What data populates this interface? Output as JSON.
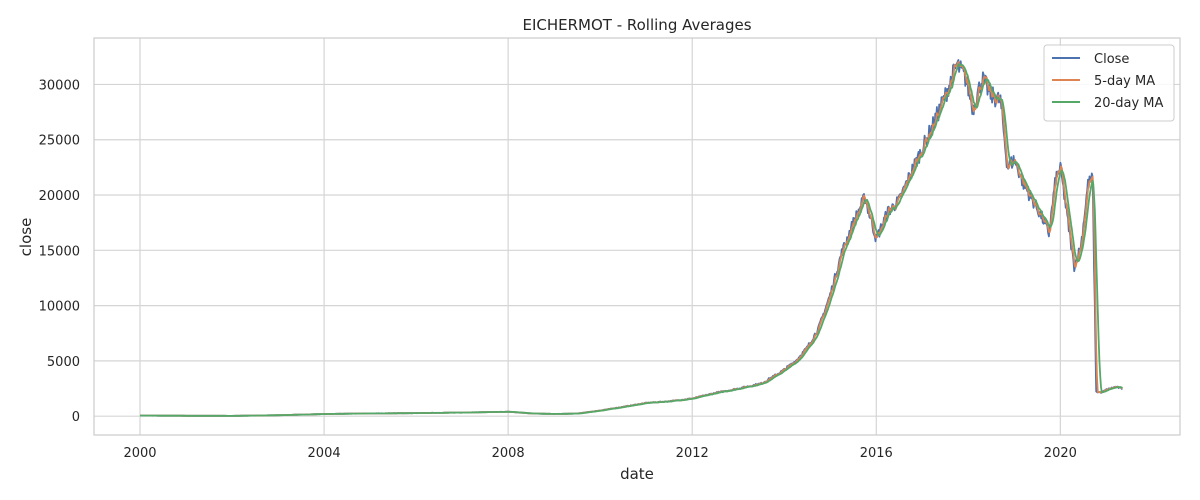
{
  "chart_data": {
    "type": "line",
    "title": "EICHERMOT - Rolling Averages",
    "xlabel": "date",
    "ylabel": "close",
    "xlim": [
      1999.0,
      2022.6
    ],
    "ylim": [
      -1700,
      34200
    ],
    "xticks": [
      2000,
      2004,
      2008,
      2012,
      2016,
      2020
    ],
    "yticks": [
      0,
      5000,
      10000,
      15000,
      20000,
      25000,
      30000
    ],
    "grid": true,
    "legend_position": "top-right",
    "colors": {
      "close": "#4c72b0",
      "ma5": "#dd8452",
      "ma20": "#55a868",
      "grid": "#d5d5d5",
      "frame": "#cccccc"
    },
    "series": [
      {
        "name": "Close",
        "key": "close"
      },
      {
        "name": "5-day MA",
        "key": "ma5"
      },
      {
        "name": "20-day MA",
        "key": "ma20"
      }
    ],
    "points": [
      [
        2000.0,
        55
      ],
      [
        2001.0,
        40
      ],
      [
        2002.0,
        30
      ],
      [
        2003.0,
        90
      ],
      [
        2004.0,
        200
      ],
      [
        2005.0,
        250
      ],
      [
        2006.0,
        280
      ],
      [
        2007.0,
        330
      ],
      [
        2008.0,
        400
      ],
      [
        2008.5,
        250
      ],
      [
        2009.0,
        200
      ],
      [
        2009.5,
        240
      ],
      [
        2010.0,
        520
      ],
      [
        2010.5,
        850
      ],
      [
        2011.0,
        1200
      ],
      [
        2011.5,
        1350
      ],
      [
        2012.0,
        1600
      ],
      [
        2012.5,
        2100
      ],
      [
        2013.0,
        2500
      ],
      [
        2013.5,
        2950
      ],
      [
        2013.75,
        3550
      ],
      [
        2014.0,
        4200
      ],
      [
        2014.25,
        5000
      ],
      [
        2014.5,
        6200
      ],
      [
        2014.75,
        8000
      ],
      [
        2015.0,
        11000
      ],
      [
        2015.25,
        14800
      ],
      [
        2015.5,
        17500
      ],
      [
        2015.75,
        19800
      ],
      [
        2016.0,
        16000
      ],
      [
        2016.25,
        18500
      ],
      [
        2016.5,
        19500
      ],
      [
        2016.75,
        22000
      ],
      [
        2017.0,
        24200
      ],
      [
        2017.25,
        26500
      ],
      [
        2017.5,
        29000
      ],
      [
        2017.75,
        31800
      ],
      [
        2017.95,
        30500
      ],
      [
        2018.1,
        27800
      ],
      [
        2018.3,
        30500
      ],
      [
        2018.5,
        29000
      ],
      [
        2018.7,
        28500
      ],
      [
        2018.85,
        22500
      ],
      [
        2019.0,
        23200
      ],
      [
        2019.2,
        21000
      ],
      [
        2019.4,
        19500
      ],
      [
        2019.6,
        18000
      ],
      [
        2019.75,
        16500
      ],
      [
        2019.9,
        21500
      ],
      [
        2020.0,
        22500
      ],
      [
        2020.15,
        18000
      ],
      [
        2020.3,
        13500
      ],
      [
        2020.45,
        15500
      ],
      [
        2020.6,
        21000
      ],
      [
        2020.7,
        21500
      ],
      [
        2020.78,
        2200
      ],
      [
        2020.9,
        2150
      ],
      [
        2021.0,
        2400
      ],
      [
        2021.2,
        2650
      ],
      [
        2021.35,
        2500
      ]
    ]
  }
}
